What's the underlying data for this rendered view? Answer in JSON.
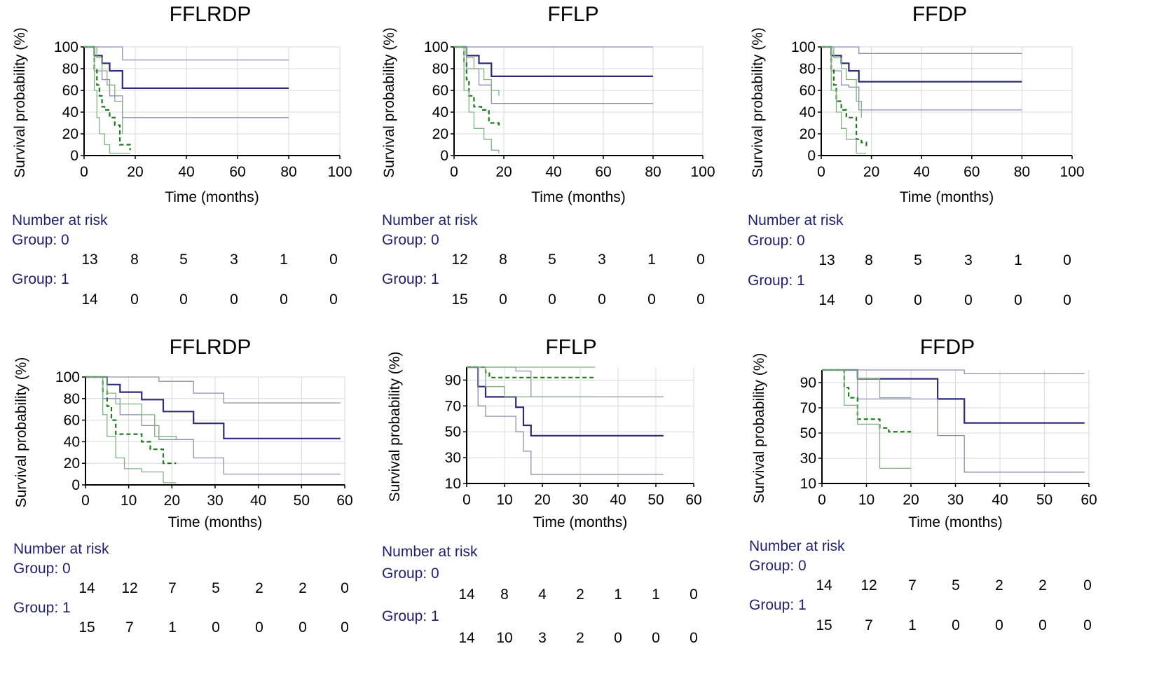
{
  "colors": {
    "group0_main": "#2b2b7a",
    "group0_ci": "#8e8eb4",
    "group1_main": "#1f7a1f",
    "group1_ci": "#7fb27f",
    "grid": "#d8d8d8",
    "axis": "#000000",
    "risk_label": "#1f1f6e"
  },
  "risk_header": "Number at risk",
  "group0_label": "Group: 0",
  "group1_label": "Group: 1",
  "chart_data": [
    {
      "type": "line",
      "title": "FFLRDP",
      "xlabel": "Time (months)",
      "ylabel": "Survival probability (%)",
      "xlim": [
        0,
        100
      ],
      "ylim": [
        0,
        100
      ],
      "xticks": [
        0,
        20,
        40,
        60,
        80,
        100
      ],
      "yticks": [
        0,
        20,
        40,
        60,
        80,
        100
      ],
      "grid": true,
      "series": [
        {
          "name": "Group 0",
          "role": "main",
          "group": 0,
          "dashed": false,
          "x": [
            0,
            4,
            7,
            10,
            15,
            80
          ],
          "y": [
            100,
            92,
            85,
            78,
            62,
            62
          ]
        },
        {
          "name": "Group 0 upper CI",
          "role": "ci",
          "group": 0,
          "dashed": false,
          "x": [
            0,
            10,
            15,
            80
          ],
          "y": [
            100,
            100,
            88,
            88
          ]
        },
        {
          "name": "Group 0 lower CI",
          "role": "ci",
          "group": 0,
          "dashed": false,
          "x": [
            0,
            4,
            7,
            10,
            15,
            80
          ],
          "y": [
            100,
            78,
            70,
            55,
            35,
            35
          ]
        },
        {
          "name": "Group 1",
          "role": "main",
          "group": 1,
          "dashed": true,
          "x": [
            0,
            4,
            5,
            6,
            7,
            8,
            10,
            12,
            14,
            18
          ],
          "y": [
            100,
            80,
            65,
            55,
            45,
            42,
            35,
            28,
            10,
            5
          ]
        },
        {
          "name": "Group 1 upper CI",
          "role": "ci",
          "group": 1,
          "dashed": false,
          "x": [
            0,
            5,
            7,
            9,
            12,
            15
          ],
          "y": [
            100,
            90,
            78,
            65,
            50,
            20
          ]
        },
        {
          "name": "Group 1 lower CI",
          "role": "ci",
          "group": 1,
          "dashed": false,
          "x": [
            0,
            4,
            5,
            6,
            8,
            10,
            18
          ],
          "y": [
            100,
            60,
            35,
            20,
            10,
            2,
            2
          ]
        }
      ],
      "risk_times": [
        0,
        20,
        40,
        60,
        80,
        100
      ],
      "risk_group0": [
        "13",
        "8",
        "5",
        "3",
        "1",
        "0"
      ],
      "risk_group1": [
        "14",
        "0",
        "0",
        "0",
        "0",
        "0"
      ]
    },
    {
      "type": "line",
      "title": "FFLP",
      "xlabel": "Time (months)",
      "ylabel": "Survival probability (%)",
      "xlim": [
        0,
        100
      ],
      "ylim": [
        0,
        100
      ],
      "xticks": [
        0,
        20,
        40,
        60,
        80,
        100
      ],
      "yticks": [
        0,
        20,
        40,
        60,
        80,
        100
      ],
      "grid": true,
      "series": [
        {
          "name": "Group 0",
          "role": "main",
          "group": 0,
          "dashed": false,
          "x": [
            0,
            5,
            10,
            15,
            80
          ],
          "y": [
            100,
            92,
            85,
            73,
            73
          ]
        },
        {
          "name": "Group 0 upper CI",
          "role": "ci",
          "group": 0,
          "dashed": false,
          "x": [
            0,
            80
          ],
          "y": [
            100,
            100
          ]
        },
        {
          "name": "Group 0 lower CI",
          "role": "ci",
          "group": 0,
          "dashed": false,
          "x": [
            0,
            5,
            10,
            15,
            80
          ],
          "y": [
            100,
            80,
            65,
            48,
            48
          ]
        },
        {
          "name": "Group 1",
          "role": "main",
          "group": 1,
          "dashed": true,
          "x": [
            0,
            4,
            5,
            6,
            8,
            11,
            14,
            18
          ],
          "y": [
            100,
            85,
            70,
            55,
            45,
            42,
            30,
            25
          ]
        },
        {
          "name": "Group 1 upper CI",
          "role": "ci",
          "group": 1,
          "dashed": false,
          "x": [
            0,
            5,
            8,
            12,
            15,
            18
          ],
          "y": [
            100,
            90,
            80,
            70,
            60,
            55
          ]
        },
        {
          "name": "Group 1 lower CI",
          "role": "ci",
          "group": 1,
          "dashed": false,
          "x": [
            0,
            4,
            6,
            8,
            12,
            15,
            18
          ],
          "y": [
            100,
            60,
            40,
            25,
            15,
            5,
            2
          ]
        }
      ],
      "risk_times": [
        0,
        20,
        40,
        60,
        80,
        100
      ],
      "risk_group0": [
        "12",
        "8",
        "5",
        "3",
        "1",
        "0"
      ],
      "risk_group1": [
        "15",
        "0",
        "0",
        "0",
        "0",
        "0"
      ]
    },
    {
      "type": "line",
      "title": "FFDP",
      "xlabel": "Time (months)",
      "ylabel": "Survival probability (%)",
      "xlim": [
        0,
        100
      ],
      "ylim": [
        0,
        100
      ],
      "xticks": [
        0,
        20,
        40,
        60,
        80,
        100
      ],
      "yticks": [
        0,
        20,
        40,
        60,
        80,
        100
      ],
      "grid": true,
      "series": [
        {
          "name": "Group 0",
          "role": "main",
          "group": 0,
          "dashed": false,
          "x": [
            0,
            4,
            8,
            11,
            15,
            80
          ],
          "y": [
            100,
            92,
            85,
            78,
            68,
            68
          ]
        },
        {
          "name": "Group 0 upper CI",
          "role": "ci",
          "group": 0,
          "dashed": false,
          "x": [
            0,
            8,
            15,
            80
          ],
          "y": [
            100,
            100,
            94,
            94
          ]
        },
        {
          "name": "Group 0 lower CI",
          "role": "ci",
          "group": 0,
          "dashed": false,
          "x": [
            0,
            4,
            8,
            11,
            15,
            80
          ],
          "y": [
            100,
            78,
            65,
            63,
            42,
            42
          ]
        },
        {
          "name": "Group 1",
          "role": "main",
          "group": 1,
          "dashed": true,
          "x": [
            0,
            4,
            5,
            6,
            8,
            10,
            14,
            16,
            18
          ],
          "y": [
            100,
            80,
            65,
            50,
            42,
            35,
            15,
            12,
            8
          ]
        },
        {
          "name": "Group 1 upper CI",
          "role": "ci",
          "group": 1,
          "dashed": false,
          "x": [
            0,
            5,
            8,
            10,
            14,
            16
          ],
          "y": [
            100,
            90,
            80,
            70,
            50,
            35
          ]
        },
        {
          "name": "Group 1 lower CI",
          "role": "ci",
          "group": 1,
          "dashed": false,
          "x": [
            0,
            4,
            6,
            8,
            10,
            14,
            18
          ],
          "y": [
            100,
            60,
            40,
            25,
            15,
            2,
            2
          ]
        }
      ],
      "risk_times": [
        0,
        20,
        40,
        60,
        80,
        100
      ],
      "risk_group0": [
        "13",
        "8",
        "5",
        "3",
        "1",
        "0"
      ],
      "risk_group1": [
        "14",
        "0",
        "0",
        "0",
        "0",
        "0"
      ]
    },
    {
      "type": "line",
      "title": "FFLRDP",
      "xlabel": "Time (months)",
      "ylabel": "Survival probability (%)",
      "xlim": [
        0,
        60
      ],
      "ylim": [
        0,
        100
      ],
      "xticks": [
        0,
        10,
        20,
        30,
        40,
        50,
        60
      ],
      "yticks": [
        0,
        20,
        40,
        60,
        80,
        100
      ],
      "grid": true,
      "series": [
        {
          "name": "Group 0",
          "role": "main",
          "group": 0,
          "dashed": false,
          "x": [
            0,
            5,
            8,
            13,
            18,
            25,
            32,
            59
          ],
          "y": [
            100,
            93,
            86,
            79,
            68,
            57,
            43,
            43
          ]
        },
        {
          "name": "Group 0 upper CI",
          "role": "ci",
          "group": 0,
          "dashed": false,
          "x": [
            0,
            17,
            25,
            32,
            59
          ],
          "y": [
            100,
            96,
            85,
            76,
            76
          ]
        },
        {
          "name": "Group 0 lower CI",
          "role": "ci",
          "group": 0,
          "dashed": false,
          "x": [
            0,
            4,
            8,
            13,
            17,
            25,
            32,
            59
          ],
          "y": [
            100,
            80,
            65,
            55,
            42,
            25,
            10,
            10
          ]
        },
        {
          "name": "Group 1",
          "role": "main",
          "group": 1,
          "dashed": true,
          "x": [
            0,
            4,
            5,
            6,
            7,
            13,
            15,
            18,
            21
          ],
          "y": [
            100,
            87,
            73,
            60,
            47,
            40,
            33,
            20,
            20
          ]
        },
        {
          "name": "Group 1 upper CI",
          "role": "ci",
          "group": 1,
          "dashed": false,
          "x": [
            0,
            5,
            7,
            13,
            16,
            21
          ],
          "y": [
            100,
            85,
            75,
            65,
            45,
            42
          ]
        },
        {
          "name": "Group 1 lower CI",
          "role": "ci",
          "group": 1,
          "dashed": false,
          "x": [
            0,
            4,
            5,
            7,
            9,
            13,
            18,
            21
          ],
          "y": [
            100,
            65,
            45,
            25,
            15,
            12,
            2,
            2
          ]
        }
      ],
      "risk_times": [
        0,
        10,
        20,
        30,
        40,
        50,
        60
      ],
      "risk_group0": [
        "14",
        "12",
        "7",
        "5",
        "2",
        "2",
        "0"
      ],
      "risk_group1": [
        "15",
        "7",
        "1",
        "0",
        "0",
        "0",
        "0"
      ]
    },
    {
      "type": "line",
      "title": "FFLP",
      "xlabel": "Time (months)",
      "ylabel": "Survival probability (%)",
      "xlim": [
        0,
        60
      ],
      "ylim": [
        10,
        100
      ],
      "xticks": [
        0,
        10,
        20,
        30,
        40,
        50,
        60
      ],
      "yticks": [
        10,
        30,
        50,
        70,
        90
      ],
      "grid": true,
      "series": [
        {
          "name": "Group 0",
          "role": "main",
          "group": 0,
          "dashed": false,
          "x": [
            0,
            3,
            5,
            13,
            15,
            17,
            52
          ],
          "y": [
            100,
            85,
            77,
            69,
            55,
            47,
            47
          ]
        },
        {
          "name": "Group 0 upper CI",
          "role": "ci",
          "group": 0,
          "dashed": false,
          "x": [
            0,
            13,
            17,
            52
          ],
          "y": [
            100,
            97,
            77,
            77
          ]
        },
        {
          "name": "Group 0 lower CI",
          "role": "ci",
          "group": 0,
          "dashed": false,
          "x": [
            0,
            3,
            5,
            13,
            15,
            17,
            52
          ],
          "y": [
            100,
            70,
            62,
            50,
            35,
            17,
            17
          ]
        },
        {
          "name": "Group 1",
          "role": "main",
          "group": 1,
          "dashed": true,
          "x": [
            0,
            5,
            6,
            34
          ],
          "y": [
            100,
            96,
            92,
            92
          ]
        },
        {
          "name": "Group 1 upper CI",
          "role": "ci",
          "group": 1,
          "dashed": false,
          "x": [
            0,
            34
          ],
          "y": [
            100,
            100
          ]
        },
        {
          "name": "Group 1 lower CI",
          "role": "ci",
          "group": 1,
          "dashed": false,
          "x": [
            0,
            5,
            10,
            34
          ],
          "y": [
            100,
            85,
            77,
            77
          ]
        }
      ],
      "risk_times": [
        0,
        10,
        20,
        30,
        40,
        50,
        60
      ],
      "risk_group0": [
        "14",
        "8",
        "4",
        "2",
        "1",
        "1",
        "0"
      ],
      "risk_group1": [
        "14",
        "10",
        "3",
        "2",
        "0",
        "0",
        "0"
      ]
    },
    {
      "type": "line",
      "title": "FFDP",
      "xlabel": "Time (months)",
      "ylabel": "Survival probability (%)",
      "xlim": [
        0,
        60
      ],
      "ylim": [
        10,
        100
      ],
      "xticks": [
        0,
        10,
        20,
        30,
        40,
        50,
        60
      ],
      "yticks": [
        10,
        30,
        50,
        70,
        90
      ],
      "grid": true,
      "series": [
        {
          "name": "Group 0",
          "role": "main",
          "group": 0,
          "dashed": false,
          "x": [
            0,
            8,
            26,
            32,
            59
          ],
          "y": [
            100,
            93,
            77,
            58,
            58
          ]
        },
        {
          "name": "Group 0 upper CI",
          "role": "ci",
          "group": 0,
          "dashed": false,
          "x": [
            0,
            32,
            59
          ],
          "y": [
            100,
            97,
            97
          ]
        },
        {
          "name": "Group 0 lower CI",
          "role": "ci",
          "group": 0,
          "dashed": false,
          "x": [
            0,
            8,
            26,
            32,
            59
          ],
          "y": [
            100,
            77,
            48,
            19,
            19
          ]
        },
        {
          "name": "Group 1",
          "role": "main",
          "group": 1,
          "dashed": true,
          "x": [
            0,
            5,
            6,
            8,
            13,
            15,
            20
          ],
          "y": [
            100,
            86,
            78,
            61,
            54,
            51,
            51
          ]
        },
        {
          "name": "Group 1 upper CI",
          "role": "ci",
          "group": 1,
          "dashed": false,
          "x": [
            0,
            8,
            13,
            20
          ],
          "y": [
            100,
            93,
            78,
            78
          ]
        },
        {
          "name": "Group 1 lower CI",
          "role": "ci",
          "group": 1,
          "dashed": false,
          "x": [
            0,
            5,
            8,
            13,
            20
          ],
          "y": [
            100,
            72,
            57,
            22,
            22
          ]
        }
      ],
      "risk_times": [
        0,
        10,
        20,
        30,
        40,
        50,
        60
      ],
      "risk_group0": [
        "14",
        "12",
        "7",
        "5",
        "2",
        "2",
        "0"
      ],
      "risk_group1": [
        "15",
        "7",
        "1",
        "0",
        "0",
        "0",
        "0"
      ]
    }
  ]
}
